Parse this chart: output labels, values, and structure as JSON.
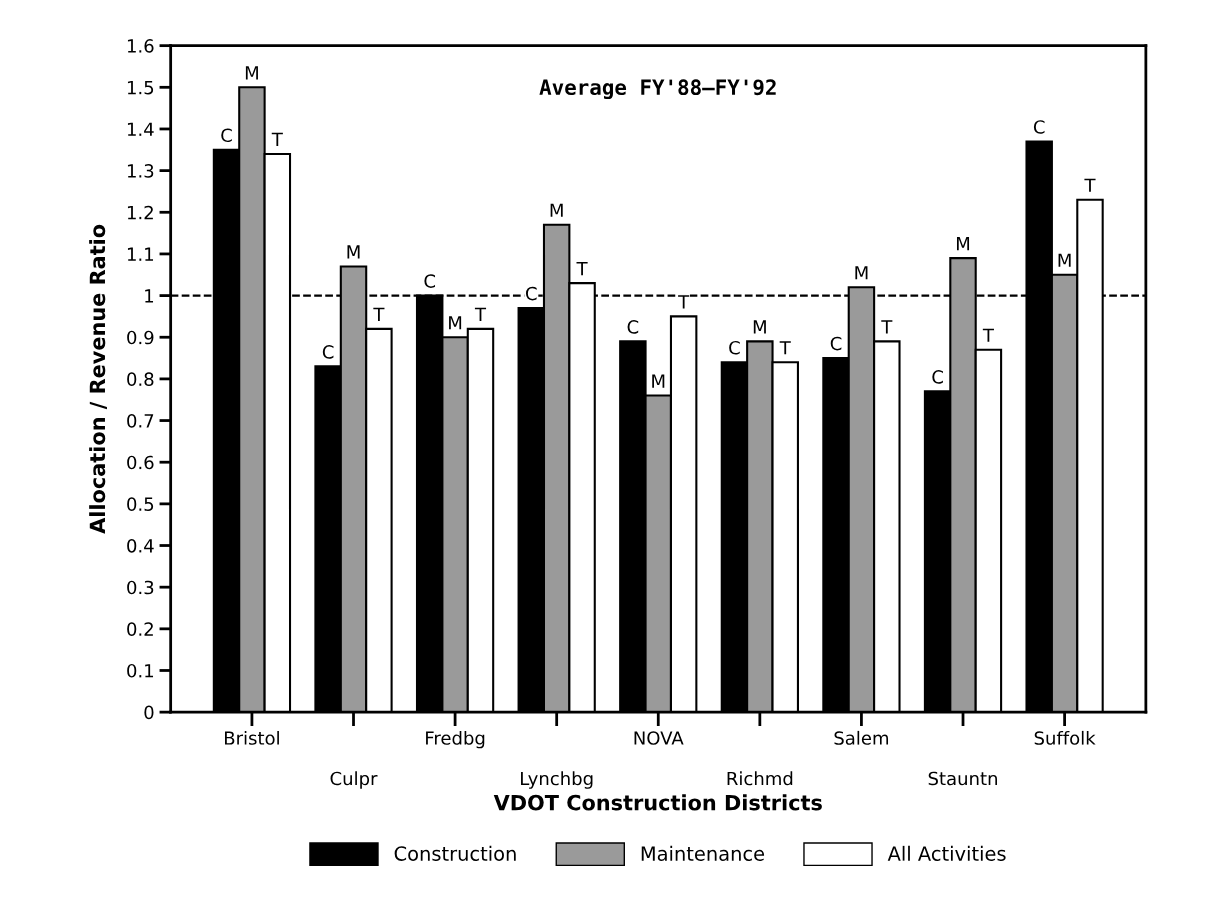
{
  "chart_data": {
    "type": "bar",
    "title": "Average FY'88—FY'92",
    "xlabel": "VDOT Construction Districts",
    "ylabel": "Allocation / Revenue Ratio",
    "categories": [
      "Bristol",
      "Culpr",
      "Fredbg",
      "Lynchbg",
      "NOVA",
      "Richmd",
      "Salem",
      "Stauntn",
      "Suffolk"
    ],
    "series": [
      {
        "name": "Construction",
        "color": "#000000",
        "values": [
          1.35,
          0.83,
          1.0,
          0.97,
          0.89,
          0.84,
          0.85,
          0.77,
          1.37
        ],
        "value_labels": [
          "C",
          "C",
          "C",
          "C",
          "C",
          "C",
          "C",
          "C",
          "C"
        ]
      },
      {
        "name": "Maintenance",
        "color": "#9a9a9a",
        "values": [
          1.5,
          1.07,
          0.9,
          1.17,
          0.76,
          0.89,
          1.02,
          1.09,
          1.05
        ],
        "value_labels": [
          "M",
          "M",
          "M",
          "M",
          "M",
          "M",
          "M",
          "M",
          "M"
        ]
      },
      {
        "name": "All Activities",
        "color": "#ffffff",
        "values": [
          1.34,
          0.92,
          0.92,
          1.03,
          0.95,
          0.84,
          0.89,
          0.87,
          1.23
        ],
        "value_labels": [
          "T",
          "T",
          "T",
          "T",
          "T",
          "T",
          "T",
          "T",
          "T"
        ]
      }
    ],
    "ylim": [
      0,
      1.6
    ],
    "yticks": [
      0,
      0.1,
      0.2,
      0.3,
      0.4,
      0.5,
      0.6,
      0.7,
      0.8,
      0.9,
      1,
      1.1,
      1.2,
      1.3,
      1.4,
      1.5,
      1.6
    ],
    "ref_lines": [
      {
        "axis": "y",
        "value": 1,
        "line_style": "dashed",
        "color": "#000000"
      }
    ],
    "grid": false,
    "legend": "bottom"
  }
}
